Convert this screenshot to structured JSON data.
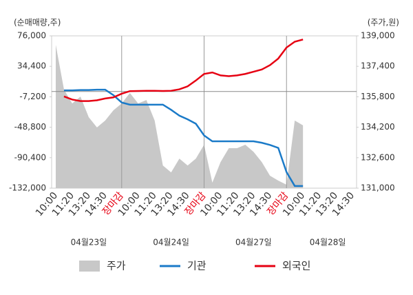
{
  "chart_data": {
    "type": "dual-axis-area-line",
    "y_label": "(순매매량,주)",
    "y2_label": "(주가,원)",
    "categories": [
      "10:00",
      null,
      "11:20",
      null,
      "13:20",
      null,
      "14:30",
      null,
      "장마감",
      null,
      "10:00",
      null,
      "11:20",
      null,
      "13:20",
      null,
      "14:30",
      null,
      "장마감",
      null,
      "10:00",
      null,
      "11:20",
      null,
      "13:20",
      null,
      "14:30",
      null,
      "장마감",
      null,
      "10:00",
      null,
      "11:20",
      null,
      "13:20",
      null,
      "14:30"
    ],
    "days": [
      "04월23일",
      "04월24일",
      "04월27일",
      "04월28일"
    ],
    "close_color": "#e60012",
    "ylim": [
      -132000,
      76000
    ],
    "yticks": [
      {
        "value": -132000,
        "label": "-132,000"
      },
      {
        "value": -90400,
        "label": "-90,400"
      },
      {
        "value": -48800,
        "label": "-48,800"
      },
      {
        "value": -7200,
        "label": "-7,200"
      },
      {
        "value": 34400,
        "label": "34,400"
      },
      {
        "value": 76000,
        "label": "76,000"
      }
    ],
    "y2lim": [
      131000,
      139000
    ],
    "y2ticks": [
      {
        "value": 131000,
        "label": "131,000"
      },
      {
        "value": 132600,
        "label": "132,600"
      },
      {
        "value": 134200,
        "label": "134,200"
      },
      {
        "value": 135800,
        "label": "135,800"
      },
      {
        "value": 137400,
        "label": "137,400"
      },
      {
        "value": 139000,
        "label": "139,000"
      }
    ],
    "series": [
      {
        "name": "주가",
        "kind": "area",
        "axis": "y2",
        "color": "#c8c8c8",
        "values": [
          138530,
          136180,
          135450,
          135810,
          134730,
          134190,
          134550,
          135090,
          135450,
          136000,
          135450,
          135630,
          134550,
          132190,
          131830,
          132550,
          132190,
          132550,
          133280,
          131290,
          132370,
          133100,
          133100,
          133280,
          132910,
          132370,
          131650,
          131400,
          131180,
          134550,
          134300,
          null,
          null,
          null,
          null,
          null,
          null
        ]
      },
      {
        "name": "기관",
        "kind": "line",
        "color": "#1a7ac8",
        "values": [
          null,
          1500,
          1500,
          2000,
          2000,
          2500,
          2500,
          -5000,
          -15000,
          -18000,
          -18000,
          -18000,
          -18000,
          -18000,
          -25000,
          -33000,
          -38000,
          -44000,
          -60000,
          -68000,
          -68000,
          -68000,
          -68000,
          -68000,
          -68000,
          -70000,
          -73000,
          -77000,
          -110000,
          -129000,
          -129000,
          null,
          null,
          null,
          null,
          null,
          null
        ]
      },
      {
        "name": "외국인",
        "kind": "line",
        "color": "#e60012",
        "values": [
          null,
          -6800,
          -11000,
          -13000,
          -13000,
          -12000,
          -9500,
          -8000,
          -3000,
          500,
          700,
          1000,
          1000,
          700,
          1000,
          3000,
          7000,
          15000,
          24000,
          26000,
          22000,
          21000,
          22000,
          24000,
          27000,
          30000,
          36000,
          45000,
          60000,
          68000,
          71000,
          null,
          null,
          null,
          null,
          null,
          null
        ]
      }
    ]
  }
}
